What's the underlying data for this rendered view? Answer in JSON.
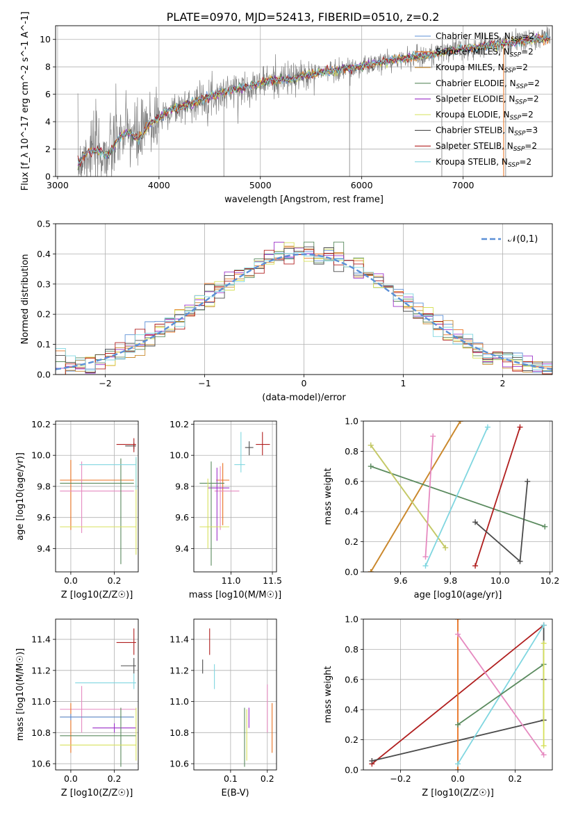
{
  "figure": {
    "title": "PLATE=0970, MJD=52413, FIBERID=0510, z=0.2"
  },
  "legend_entries": [
    {
      "base": "Chabrier MILES, N",
      "sub": "SSP",
      "tail": "=2",
      "color": "#5b8fd6"
    },
    {
      "base": "Salpeter MILES, N",
      "sub": "SSP",
      "tail": "=2",
      "color": "#e8701f"
    },
    {
      "base": "Kroupa MILES, N",
      "sub": "SSP",
      "tail": "=2",
      "color": "#c88a2e"
    },
    {
      "base": "Chabrier ELODIE, N",
      "sub": "SSP",
      "tail": "=2",
      "color": "#5a8a5e"
    },
    {
      "base": "Salpeter ELODIE, N",
      "sub": "SSP",
      "tail": "=2",
      "color": "#9b30c8"
    },
    {
      "base": "Kroupa ELODIE, N",
      "sub": "SSP",
      "tail": "=2",
      "color": "#d6e05a"
    },
    {
      "base": "Chabrier STELIB, N",
      "sub": "SSP",
      "tail": "=3",
      "color": "#4a4a4a"
    },
    {
      "base": "Salpeter STELIB, N",
      "sub": "SSP",
      "tail": "=2",
      "color": "#b01e1e"
    },
    {
      "base": "Kroupa STELIB, N",
      "sub": "SSP",
      "tail": "=2",
      "color": "#7fd6e0"
    }
  ],
  "chart_data": [
    {
      "id": "spectrum",
      "type": "line",
      "xlabel": "wavelength [Angstrom, rest frame]",
      "ylabel": "Flux [f_λ 10^-17 erg cm^-2 s^-1 A^-1]",
      "xlim": [
        2980,
        7880
      ],
      "ylim": [
        0,
        11
      ],
      "xticks": [
        "3000",
        "4000",
        "5000",
        "6000",
        "7000"
      ],
      "yticks": [
        "0",
        "2",
        "4",
        "6",
        "8",
        "10"
      ],
      "continuum": {
        "x": [
          3200,
          3300,
          3400,
          3500,
          3600,
          3700,
          3800,
          3900,
          4000,
          4100,
          4300,
          4500,
          4700,
          4900,
          5100,
          5300,
          5500,
          5700,
          5900,
          6100,
          6300,
          6500,
          6700,
          6900,
          7100,
          7300,
          7500,
          7700,
          7860
        ],
        "y": [
          1.0,
          1.8,
          1.9,
          1.5,
          2.8,
          3.2,
          2.7,
          3.8,
          4.3,
          4.8,
          5.3,
          5.8,
          6.3,
          6.6,
          7.0,
          7.1,
          7.5,
          7.7,
          7.9,
          8.2,
          8.5,
          8.7,
          8.9,
          9.3,
          9.4,
          9.6,
          9.8,
          10.0,
          10.1
        ]
      },
      "legend_loc": "right"
    },
    {
      "id": "residuals",
      "type": "histogram",
      "xlabel": "(data-model)/error",
      "ylabel": "Normed distribution",
      "xlim": [
        -2.5,
        2.5
      ],
      "ylim": [
        0,
        0.5
      ],
      "xticks": [
        "−2",
        "−1",
        "0",
        "1",
        "2"
      ],
      "yticks": [
        "0.0",
        "0.1",
        "0.2",
        "0.3",
        "0.4",
        "0.5"
      ],
      "bin_width": 0.1,
      "reference_curve": {
        "name": "𝒩(0,1)",
        "color": "#5b8fd6",
        "style": "dashed"
      }
    },
    {
      "id": "age-vs-Z",
      "type": "scatter",
      "xlabel": "Z [log10(Z/Z☉)]",
      "ylabel": "age  [log10(age/yr)]",
      "xlim": [
        -0.07,
        0.31
      ],
      "ylim": [
        9.25,
        10.22
      ],
      "xticks": [
        "0.0",
        "0.2"
      ],
      "yticks": [
        "9.4",
        "9.6",
        "9.8",
        "10.0",
        "10.2"
      ],
      "points": [
        {
          "x": 0.29,
          "y": 10.06,
          "xlo": 0.25,
          "xhi": 0.3,
          "ylo": 10.04,
          "yhi": 10.08,
          "color": "#4a4a4a"
        },
        {
          "x": 0.29,
          "y": 10.07,
          "xlo": 0.21,
          "xhi": 0.3,
          "ylo": 10.02,
          "yhi": 10.11,
          "color": "#b01e1e"
        },
        {
          "x": 0.0,
          "y": 9.84,
          "xlo": -0.05,
          "xhi": 0.29,
          "ylo": 9.52,
          "yhi": 9.97,
          "color": "#e8701f"
        },
        {
          "x": 0.05,
          "y": 9.77,
          "xlo": -0.05,
          "xhi": 0.29,
          "ylo": 9.5,
          "yhi": 9.96,
          "color": "#e68ac0"
        },
        {
          "x": 0.23,
          "y": 9.82,
          "xlo": -0.05,
          "xhi": 0.29,
          "ylo": 9.3,
          "yhi": 9.98,
          "color": "#5a8a5e"
        },
        {
          "x": 0.3,
          "y": 9.54,
          "xlo": -0.05,
          "xhi": 0.3,
          "ylo": 9.36,
          "yhi": 9.98,
          "color": "#d6e05a"
        },
        {
          "x": 0.3,
          "y": 9.94,
          "xlo": 0.04,
          "xhi": 0.3,
          "ylo": 9.78,
          "yhi": 9.99,
          "color": "#7fd6e0"
        }
      ]
    },
    {
      "id": "age-vs-mass",
      "type": "scatter",
      "xlabel": "mass [log10(M/M☉)]",
      "ylabel": "",
      "xlim": [
        10.55,
        11.55
      ],
      "ylim": [
        9.25,
        10.22
      ],
      "xticks": [
        "11.0",
        "11.5"
      ],
      "yticks": [
        "9.4",
        "9.6",
        "9.8",
        "10.0",
        "10.2"
      ],
      "points": [
        {
          "x": 11.38,
          "y": 10.07,
          "xlo": 11.3,
          "xhi": 11.47,
          "ylo": 10.0,
          "yhi": 10.15,
          "color": "#b01e1e"
        },
        {
          "x": 11.22,
          "y": 10.05,
          "xlo": 11.17,
          "xhi": 11.27,
          "ylo": 10.0,
          "yhi": 10.09,
          "color": "#4a4a4a"
        },
        {
          "x": 11.12,
          "y": 9.94,
          "xlo": 11.04,
          "xhi": 11.17,
          "ylo": 9.89,
          "yhi": 10.15,
          "color": "#7fd6e0"
        },
        {
          "x": 10.9,
          "y": 9.84,
          "xlo": 10.82,
          "xhi": 10.98,
          "ylo": 9.55,
          "yhi": 9.95,
          "color": "#e8701f"
        },
        {
          "x": 10.87,
          "y": 9.77,
          "xlo": 10.8,
          "xhi": 11.1,
          "ylo": 9.52,
          "yhi": 9.93,
          "color": "#e68ac0"
        },
        {
          "x": 10.83,
          "y": 9.79,
          "xlo": 10.72,
          "xhi": 10.98,
          "ylo": 9.45,
          "yhi": 9.92,
          "color": "#9b30c8"
        },
        {
          "x": 10.76,
          "y": 9.82,
          "xlo": 10.62,
          "xhi": 10.92,
          "ylo": 9.29,
          "yhi": 9.96,
          "color": "#5a8a5e"
        },
        {
          "x": 10.72,
          "y": 9.54,
          "xlo": 10.62,
          "xhi": 10.98,
          "ylo": 9.4,
          "yhi": 9.85,
          "color": "#d6e05a"
        }
      ]
    },
    {
      "id": "weight-vs-age",
      "type": "line",
      "xlabel": "age  [log10(age/yr)]",
      "ylabel": "mass weight",
      "xlim": [
        9.45,
        10.21
      ],
      "ylim": [
        0,
        1
      ],
      "xticks": [
        "9.6",
        "9.8",
        "10.0",
        "10.2"
      ],
      "yticks": [
        "0.0",
        "0.2",
        "0.4",
        "0.6",
        "0.8",
        "1.0"
      ],
      "series": [
        {
          "x": [
            9.48,
            9.84
          ],
          "y": [
            0.0,
            1.0
          ],
          "color": "#e8701f"
        },
        {
          "x": [
            9.48,
            9.84
          ],
          "y": [
            0.0,
            1.0
          ],
          "color": "#c88a2e"
        },
        {
          "x": [
            9.48,
            10.18
          ],
          "y": [
            0.7,
            0.3
          ],
          "color": "#5a8a5e"
        },
        {
          "x": [
            9.48,
            9.78
          ],
          "y": [
            0.84,
            0.16
          ],
          "color": "#d6e05a"
        },
        {
          "x": [
            9.48,
            9.78
          ],
          "y": [
            0.84,
            0.16
          ],
          "color": "#c4c86a"
        },
        {
          "x": [
            9.7,
            9.73
          ],
          "y": [
            0.1,
            0.9
          ],
          "color": "#e68ac0"
        },
        {
          "x": [
            9.7,
            9.95
          ],
          "y": [
            0.04,
            0.96
          ],
          "color": "#7fd6e0"
        },
        {
          "x": [
            9.9,
            10.08
          ],
          "y": [
            0.04,
            0.96
          ],
          "color": "#b01e1e"
        },
        {
          "x": [
            9.9,
            10.08,
            10.11
          ],
          "y": [
            0.33,
            0.07,
            0.6
          ],
          "color": "#4a4a4a"
        }
      ]
    },
    {
      "id": "mass-vs-Z",
      "type": "scatter",
      "xlabel": "Z [log10(Z/Z☉)]",
      "ylabel": "mass [log10(M/M☉)]",
      "xlim": [
        -0.07,
        0.31
      ],
      "ylim": [
        10.56,
        11.53
      ],
      "xticks": [
        "0.0",
        "0.2"
      ],
      "yticks": [
        "10.6",
        "10.8",
        "11.0",
        "11.2",
        "11.4"
      ],
      "points": [
        {
          "x": 0.29,
          "y": 11.38,
          "xlo": 0.21,
          "xhi": 0.3,
          "ylo": 11.3,
          "yhi": 11.47,
          "color": "#b01e1e"
        },
        {
          "x": 0.29,
          "y": 11.23,
          "xlo": 0.23,
          "xhi": 0.3,
          "ylo": 11.18,
          "yhi": 11.28,
          "color": "#4a4a4a"
        },
        {
          "x": 0.29,
          "y": 11.12,
          "xlo": 0.02,
          "xhi": 0.3,
          "ylo": 11.08,
          "yhi": 11.18,
          "color": "#7fd6e0"
        },
        {
          "x": 0.05,
          "y": 10.95,
          "xlo": -0.05,
          "xhi": 0.3,
          "ylo": 10.8,
          "yhi": 11.1,
          "color": "#e68ac0"
        },
        {
          "x": 0.0,
          "y": 10.9,
          "xlo": -0.05,
          "xhi": 0.29,
          "ylo": 10.67,
          "yhi": 10.99,
          "color": "#e8701f"
        },
        {
          "x": 0.0,
          "y": 10.9,
          "xlo": -0.05,
          "xhi": 0.29,
          "ylo": 10.88,
          "yhi": 10.92,
          "color": "#5b8fd6"
        },
        {
          "x": 0.2,
          "y": 10.83,
          "xlo": 0.1,
          "xhi": 0.3,
          "ylo": 10.8,
          "yhi": 10.86,
          "color": "#9b30c8"
        },
        {
          "x": 0.23,
          "y": 10.78,
          "xlo": -0.05,
          "xhi": 0.3,
          "ylo": 10.58,
          "yhi": 10.96,
          "color": "#5a8a5e"
        },
        {
          "x": 0.3,
          "y": 10.72,
          "xlo": -0.05,
          "xhi": 0.3,
          "ylo": 10.62,
          "yhi": 10.96,
          "color": "#d6e05a"
        }
      ]
    },
    {
      "id": "mass-vs-EBV",
      "type": "scatter",
      "xlabel": "E(B-V)",
      "ylabel": "",
      "xlim": [
        0.0,
        0.225
      ],
      "ylim": [
        10.56,
        11.53
      ],
      "xticks": [
        "0.1",
        "0.2"
      ],
      "yticks": [
        "10.6",
        "10.8",
        "11.0",
        "11.2",
        "11.4"
      ],
      "points": [
        {
          "x": 0.043,
          "y": 11.38,
          "ylo": 11.3,
          "yhi": 11.47,
          "color": "#b01e1e"
        },
        {
          "x": 0.024,
          "y": 11.23,
          "ylo": 11.18,
          "yhi": 11.27,
          "color": "#4a4a4a"
        },
        {
          "x": 0.056,
          "y": 11.16,
          "ylo": 11.08,
          "yhi": 11.24,
          "color": "#7fd6e0"
        },
        {
          "x": 0.2,
          "y": 10.95,
          "ylo": 10.8,
          "yhi": 11.11,
          "color": "#e68ac0"
        },
        {
          "x": 0.213,
          "y": 10.85,
          "ylo": 10.67,
          "yhi": 10.99,
          "color": "#e8701f"
        },
        {
          "x": 0.15,
          "y": 10.9,
          "ylo": 10.83,
          "yhi": 10.96,
          "color": "#9b30c8"
        },
        {
          "x": 0.138,
          "y": 10.78,
          "ylo": 10.58,
          "yhi": 10.96,
          "color": "#5a8a5e"
        },
        {
          "x": 0.144,
          "y": 10.82,
          "ylo": 10.62,
          "yhi": 10.95,
          "color": "#d6e05a"
        }
      ]
    },
    {
      "id": "weight-vs-Z",
      "type": "line",
      "xlabel": "Z [log10(Z/Z☉)]",
      "ylabel": "mass weight",
      "xlim": [
        -0.33,
        0.33
      ],
      "ylim": [
        0,
        1
      ],
      "xticks": [
        "−0.2",
        "0.0",
        "0.2"
      ],
      "yticks": [
        "0.0",
        "0.2",
        "0.4",
        "0.6",
        "0.8",
        "1.0"
      ],
      "series": [
        {
          "x": [
            -0.3,
            0.3
          ],
          "y": [
            0.04,
            0.96
          ],
          "color": "#b01e1e"
        },
        {
          "x": [
            -0.3,
            0.3
          ],
          "y": [
            0.06,
            0.33
          ],
          "color": "#4a4a4a"
        },
        {
          "x": [
            0.3,
            0.3,
            0.3
          ],
          "y": [
            0.33,
            0.6,
            0.96
          ],
          "color": "#4a4a4a"
        },
        {
          "x": [
            0.0,
            0.0
          ],
          "y": [
            0.0,
            1.0
          ],
          "color": "#e8701f"
        },
        {
          "x": [
            0.0,
            0.3
          ],
          "y": [
            0.9,
            0.1
          ],
          "color": "#e68ac0"
        },
        {
          "x": [
            0.0,
            0.3
          ],
          "y": [
            0.04,
            0.96
          ],
          "color": "#7fd6e0"
        },
        {
          "x": [
            0.0,
            0.3
          ],
          "y": [
            0.3,
            0.7
          ],
          "color": "#5a8a5e"
        },
        {
          "x": [
            0.3,
            0.3
          ],
          "y": [
            0.16,
            0.84
          ],
          "color": "#d6e05a"
        }
      ]
    }
  ]
}
